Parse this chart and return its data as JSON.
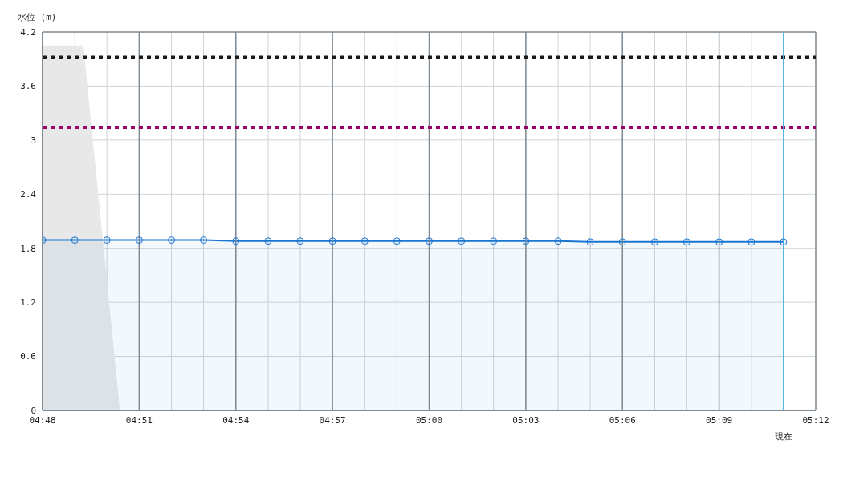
{
  "chart_data": {
    "type": "area",
    "ylabel": "水位 (m)",
    "xlim": [
      4.8,
      5.2
    ],
    "xticks": [
      {
        "value": 4.8,
        "label": "04:48"
      },
      {
        "value": 4.8167,
        "label": null
      },
      {
        "value": 4.8333,
        "label": null
      },
      {
        "value": 4.85,
        "label": "04:51"
      },
      {
        "value": 4.8667,
        "label": null
      },
      {
        "value": 4.8833,
        "label": null
      },
      {
        "value": 4.9,
        "label": "04:54"
      },
      {
        "value": 4.9167,
        "label": null
      },
      {
        "value": 4.9333,
        "label": null
      },
      {
        "value": 4.95,
        "label": "04:57"
      },
      {
        "value": 4.9667,
        "label": null
      },
      {
        "value": 4.9833,
        "label": null
      },
      {
        "value": 5.0,
        "label": "05:00"
      },
      {
        "value": 5.0167,
        "label": null
      },
      {
        "value": 5.0333,
        "label": null
      },
      {
        "value": 5.05,
        "label": "05:03"
      },
      {
        "value": 5.0667,
        "label": null
      },
      {
        "value": 5.0833,
        "label": null
      },
      {
        "value": 5.1,
        "label": "05:06"
      },
      {
        "value": 5.1167,
        "label": null
      },
      {
        "value": 5.1333,
        "label": null
      },
      {
        "value": 5.15,
        "label": "05:09"
      },
      {
        "value": 5.1667,
        "label": null
      },
      {
        "value": 5.1833,
        "label": null
      },
      {
        "value": 5.2,
        "label": "05:12"
      }
    ],
    "ylim": [
      0,
      4.2
    ],
    "yticks": [
      0,
      0.6,
      1.2,
      1.8,
      2.4,
      3,
      3.6,
      4.2
    ],
    "grid": true,
    "legend": false,
    "series": [
      {
        "color": "#e8e8e8",
        "x": [
          4.8,
          4.8211,
          4.84
        ],
        "values": [
          4.05,
          4.05,
          0
        ],
        "marker": "none"
      },
      {
        "color": "#1976d2",
        "marker": "circle",
        "x": [
          4.8,
          4.8167,
          4.8333,
          4.85,
          4.8667,
          4.8833,
          4.9,
          4.9167,
          4.9333,
          4.95,
          4.9667,
          4.9833,
          5.0,
          5.0167,
          5.0333,
          5.05,
          5.0667,
          5.0833,
          5.1,
          5.1167,
          5.1333,
          5.15,
          5.1667,
          5.1833
        ],
        "values": [
          1.89,
          1.89,
          1.89,
          1.89,
          1.89,
          1.89,
          1.88,
          1.88,
          1.88,
          1.88,
          1.88,
          1.88,
          1.88,
          1.88,
          1.88,
          1.88,
          1.88,
          1.87,
          1.87,
          1.87,
          1.87,
          1.87,
          1.87,
          1.87
        ]
      }
    ],
    "ref_lines": [
      {
        "axis": "y",
        "value": 3.92,
        "color": "#1a1a1a",
        "line_style": "dotted"
      },
      {
        "axis": "y",
        "value": 3.14,
        "color": "#990066",
        "line_style": "dotted"
      },
      {
        "axis": "x",
        "value": 5.1833,
        "label": "現在",
        "color": "#4fb3e8",
        "line_style": "solid"
      }
    ]
  }
}
